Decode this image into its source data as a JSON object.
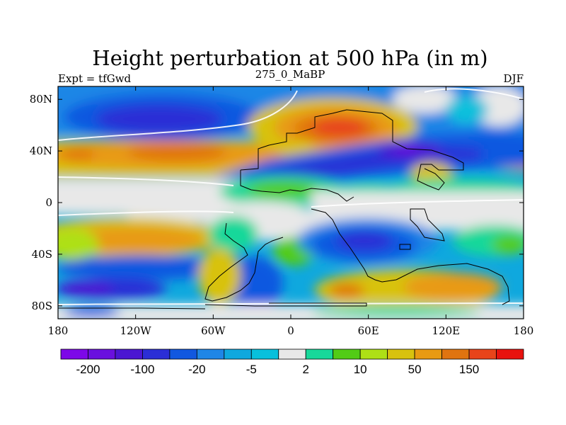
{
  "chart_data": {
    "type": "heatmap",
    "title": "Height perturbation at 500 hPa (in m)",
    "subtitle_left": "Expt = tfGwd",
    "subtitle_center": "275_0_MaBP",
    "subtitle_right": "DJF",
    "x_ticks": [
      "180",
      "120W",
      "60W",
      "0",
      "60E",
      "120E",
      "180"
    ],
    "y_ticks": [
      "80N",
      "40N",
      "0",
      "40S",
      "80S"
    ],
    "xlim": [
      -180,
      180
    ],
    "ylim": [
      -90,
      90
    ],
    "colorbar": {
      "colors": [
        "#7d08e8",
        "#6a10de",
        "#4b16d2",
        "#2b2ed6",
        "#1158e0",
        "#1f86e6",
        "#0fa8de",
        "#08c0dc",
        "#e8e8e8",
        "#18d89a",
        "#52cc16",
        "#aee016",
        "#d8c20e",
        "#e89a12",
        "#e07410",
        "#e8441a",
        "#e8120e"
      ],
      "labels": [
        "-200",
        "-100",
        "-20",
        "-5",
        "2",
        "10",
        "50",
        "150"
      ]
    }
  }
}
